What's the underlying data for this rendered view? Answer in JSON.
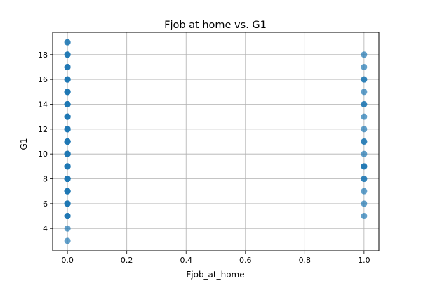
{
  "chart_data": {
    "type": "scatter",
    "title": "Fjob at home vs. G1",
    "xlabel": "Fjob_at_home",
    "ylabel": "G1",
    "xlim": [
      -0.05,
      1.05
    ],
    "ylim": [
      2.2,
      19.8
    ],
    "xticks": [
      0.0,
      0.2,
      0.4,
      0.6,
      0.8,
      1.0
    ],
    "xtick_labels": [
      "0.0",
      "0.2",
      "0.4",
      "0.6",
      "0.8",
      "1.0"
    ],
    "yticks": [
      4,
      6,
      8,
      10,
      12,
      14,
      16,
      18
    ],
    "ytick_labels": [
      "4",
      "6",
      "8",
      "10",
      "12",
      "14",
      "16",
      "18"
    ],
    "grid": true,
    "marker_color": "#1f77b4",
    "series": [
      {
        "points": [
          {
            "x": 0,
            "y": 3,
            "count": 1
          },
          {
            "x": 0,
            "y": 4,
            "count": 1
          },
          {
            "x": 0,
            "y": 5,
            "count": 4
          },
          {
            "x": 0,
            "y": 6,
            "count": 6
          },
          {
            "x": 0,
            "y": 7,
            "count": 8
          },
          {
            "x": 0,
            "y": 8,
            "count": 10
          },
          {
            "x": 0,
            "y": 9,
            "count": 10
          },
          {
            "x": 0,
            "y": 10,
            "count": 9
          },
          {
            "x": 0,
            "y": 11,
            "count": 10
          },
          {
            "x": 0,
            "y": 12,
            "count": 8
          },
          {
            "x": 0,
            "y": 13,
            "count": 7
          },
          {
            "x": 0,
            "y": 14,
            "count": 7
          },
          {
            "x": 0,
            "y": 15,
            "count": 6
          },
          {
            "x": 0,
            "y": 16,
            "count": 5
          },
          {
            "x": 0,
            "y": 17,
            "count": 4
          },
          {
            "x": 0,
            "y": 18,
            "count": 3
          },
          {
            "x": 0,
            "y": 19,
            "count": 2
          },
          {
            "x": 1,
            "y": 5,
            "count": 1
          },
          {
            "x": 1,
            "y": 6,
            "count": 1
          },
          {
            "x": 1,
            "y": 7,
            "count": 1
          },
          {
            "x": 1,
            "y": 8,
            "count": 2
          },
          {
            "x": 1,
            "y": 9,
            "count": 3
          },
          {
            "x": 1,
            "y": 10,
            "count": 1
          },
          {
            "x": 1,
            "y": 11,
            "count": 2
          },
          {
            "x": 1,
            "y": 12,
            "count": 1
          },
          {
            "x": 1,
            "y": 13,
            "count": 1
          },
          {
            "x": 1,
            "y": 14,
            "count": 2
          },
          {
            "x": 1,
            "y": 15,
            "count": 1
          },
          {
            "x": 1,
            "y": 16,
            "count": 2
          },
          {
            "x": 1,
            "y": 17,
            "count": 1
          },
          {
            "x": 1,
            "y": 18,
            "count": 1
          }
        ]
      }
    ]
  }
}
